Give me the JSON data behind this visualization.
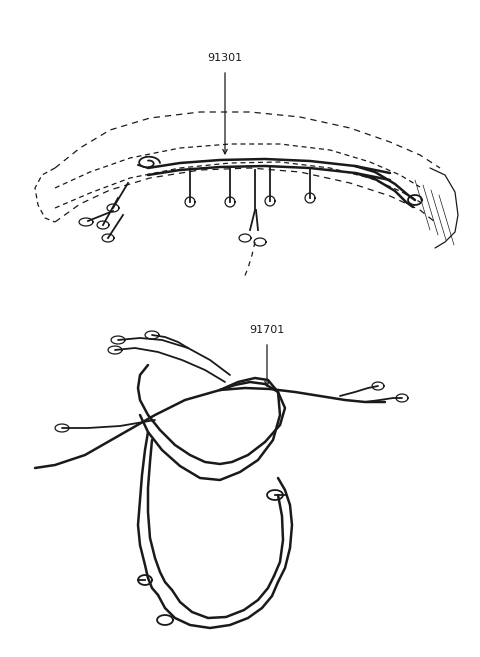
{
  "background_color": "#ffffff",
  "label_91301": "91301",
  "label_91701": "91701",
  "line_color": "#1a1a1a",
  "label_fontsize": 8,
  "label_fontweight": "normal"
}
